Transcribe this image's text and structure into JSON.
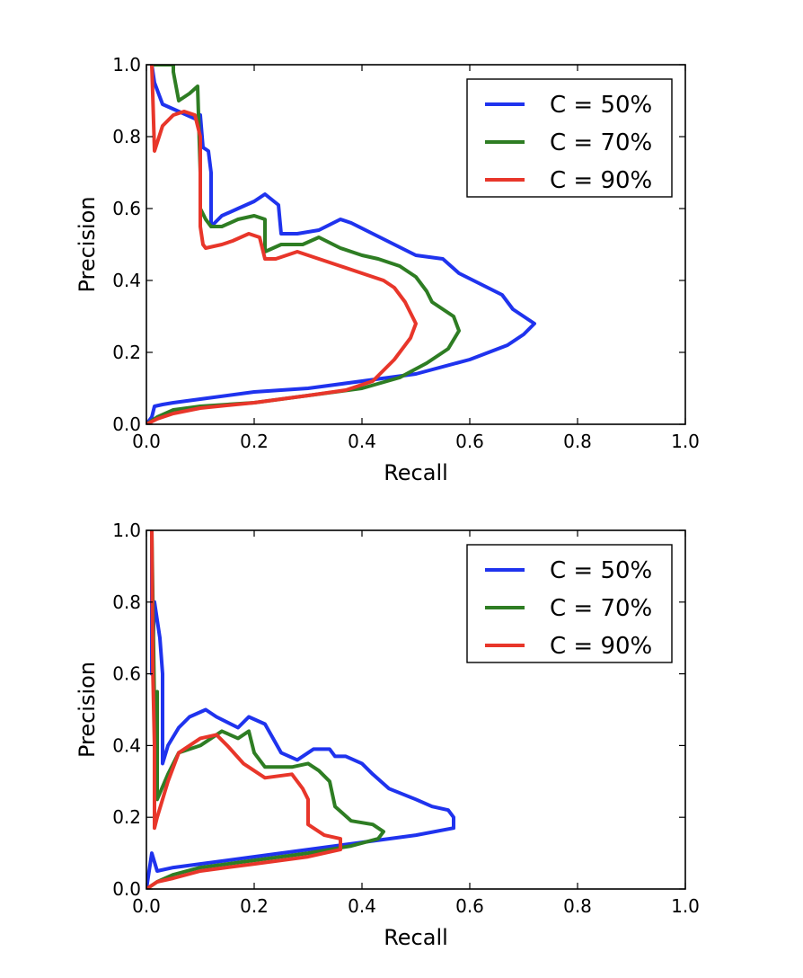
{
  "chart_data": [
    {
      "type": "line",
      "title": "",
      "xlabel": "Recall",
      "ylabel": "Precision",
      "xlim": [
        0,
        1
      ],
      "ylim": [
        0,
        1
      ],
      "xticks": [
        "0.0",
        "0.2",
        "0.4",
        "0.6",
        "0.8",
        "1.0"
      ],
      "yticks": [
        "0.0",
        "0.2",
        "0.4",
        "0.6",
        "0.8",
        "1.0"
      ],
      "grid": false,
      "legend_position": "top-right",
      "series": [
        {
          "name": "C = 50%",
          "color": "#1f33ee",
          "points": [
            [
              0.0,
              0.0
            ],
            [
              0.01,
              0.02
            ],
            [
              0.015,
              0.05
            ],
            [
              0.03,
              0.055
            ],
            [
              0.05,
              0.06
            ],
            [
              0.1,
              0.07
            ],
            [
              0.2,
              0.09
            ],
            [
              0.3,
              0.1
            ],
            [
              0.4,
              0.12
            ],
            [
              0.5,
              0.14
            ],
            [
              0.6,
              0.18
            ],
            [
              0.67,
              0.22
            ],
            [
              0.7,
              0.25
            ],
            [
              0.72,
              0.28
            ],
            [
              0.7,
              0.3
            ],
            [
              0.68,
              0.32
            ],
            [
              0.66,
              0.36
            ],
            [
              0.62,
              0.39
            ],
            [
              0.58,
              0.42
            ],
            [
              0.55,
              0.46
            ],
            [
              0.5,
              0.47
            ],
            [
              0.46,
              0.5
            ],
            [
              0.42,
              0.53
            ],
            [
              0.38,
              0.56
            ],
            [
              0.36,
              0.57
            ],
            [
              0.32,
              0.54
            ],
            [
              0.28,
              0.53
            ],
            [
              0.25,
              0.53
            ],
            [
              0.245,
              0.61
            ],
            [
              0.22,
              0.64
            ],
            [
              0.2,
              0.62
            ],
            [
              0.17,
              0.6
            ],
            [
              0.14,
              0.58
            ],
            [
              0.12,
              0.55
            ],
            [
              0.12,
              0.7
            ],
            [
              0.115,
              0.76
            ],
            [
              0.105,
              0.77
            ],
            [
              0.1,
              0.86
            ],
            [
              0.09,
              0.85
            ],
            [
              0.06,
              0.87
            ],
            [
              0.03,
              0.89
            ],
            [
              0.015,
              0.95
            ],
            [
              0.01,
              1.0
            ]
          ]
        },
        {
          "name": "C = 70%",
          "color": "#2e7d23",
          "points": [
            [
              0.0,
              0.0
            ],
            [
              0.02,
              0.02
            ],
            [
              0.05,
              0.04
            ],
            [
              0.1,
              0.05
            ],
            [
              0.2,
              0.06
            ],
            [
              0.3,
              0.08
            ],
            [
              0.4,
              0.1
            ],
            [
              0.47,
              0.13
            ],
            [
              0.52,
              0.17
            ],
            [
              0.56,
              0.21
            ],
            [
              0.58,
              0.26
            ],
            [
              0.57,
              0.3
            ],
            [
              0.55,
              0.32
            ],
            [
              0.53,
              0.34
            ],
            [
              0.52,
              0.37
            ],
            [
              0.5,
              0.41
            ],
            [
              0.47,
              0.44
            ],
            [
              0.43,
              0.46
            ],
            [
              0.4,
              0.47
            ],
            [
              0.36,
              0.49
            ],
            [
              0.32,
              0.52
            ],
            [
              0.29,
              0.5
            ],
            [
              0.25,
              0.5
            ],
            [
              0.22,
              0.48
            ],
            [
              0.22,
              0.57
            ],
            [
              0.2,
              0.58
            ],
            [
              0.17,
              0.57
            ],
            [
              0.14,
              0.55
            ],
            [
              0.12,
              0.55
            ],
            [
              0.11,
              0.57
            ],
            [
              0.1,
              0.6
            ],
            [
              0.1,
              0.7
            ],
            [
              0.095,
              0.94
            ],
            [
              0.08,
              0.92
            ],
            [
              0.06,
              0.9
            ],
            [
              0.05,
              0.98
            ],
            [
              0.05,
              1.0
            ],
            [
              0.01,
              1.0
            ]
          ]
        },
        {
          "name": "C = 90%",
          "color": "#e8362a",
          "points": [
            [
              0.0,
              0.0
            ],
            [
              0.02,
              0.015
            ],
            [
              0.05,
              0.03
            ],
            [
              0.1,
              0.045
            ],
            [
              0.2,
              0.06
            ],
            [
              0.3,
              0.08
            ],
            [
              0.37,
              0.095
            ],
            [
              0.42,
              0.12
            ],
            [
              0.46,
              0.18
            ],
            [
              0.49,
              0.24
            ],
            [
              0.5,
              0.28
            ],
            [
              0.49,
              0.31
            ],
            [
              0.48,
              0.34
            ],
            [
              0.46,
              0.38
            ],
            [
              0.44,
              0.4
            ],
            [
              0.4,
              0.42
            ],
            [
              0.36,
              0.44
            ],
            [
              0.32,
              0.46
            ],
            [
              0.28,
              0.48
            ],
            [
              0.24,
              0.46
            ],
            [
              0.22,
              0.46
            ],
            [
              0.21,
              0.52
            ],
            [
              0.19,
              0.53
            ],
            [
              0.16,
              0.51
            ],
            [
              0.14,
              0.5
            ],
            [
              0.11,
              0.49
            ],
            [
              0.105,
              0.5
            ],
            [
              0.1,
              0.55
            ],
            [
              0.1,
              0.8
            ],
            [
              0.09,
              0.86
            ],
            [
              0.07,
              0.87
            ],
            [
              0.05,
              0.86
            ],
            [
              0.03,
              0.83
            ],
            [
              0.015,
              0.76
            ],
            [
              0.01,
              1.0
            ]
          ]
        }
      ]
    },
    {
      "type": "line",
      "title": "",
      "xlabel": "Recall",
      "ylabel": "Precision",
      "xlim": [
        0,
        1
      ],
      "ylim": [
        0,
        1
      ],
      "xticks": [
        "0.0",
        "0.2",
        "0.4",
        "0.6",
        "0.8",
        "1.0"
      ],
      "yticks": [
        "0.0",
        "0.2",
        "0.4",
        "0.6",
        "0.8",
        "1.0"
      ],
      "grid": false,
      "legend_position": "top-right",
      "series": [
        {
          "name": "C = 50%",
          "color": "#1f33ee",
          "points": [
            [
              0.0,
              0.0
            ],
            [
              0.005,
              0.05
            ],
            [
              0.01,
              0.1
            ],
            [
              0.02,
              0.05
            ],
            [
              0.05,
              0.06
            ],
            [
              0.1,
              0.07
            ],
            [
              0.2,
              0.09
            ],
            [
              0.3,
              0.11
            ],
            [
              0.4,
              0.13
            ],
            [
              0.5,
              0.15
            ],
            [
              0.57,
              0.17
            ],
            [
              0.57,
              0.2
            ],
            [
              0.56,
              0.22
            ],
            [
              0.53,
              0.23
            ],
            [
              0.5,
              0.25
            ],
            [
              0.45,
              0.28
            ],
            [
              0.42,
              0.32
            ],
            [
              0.4,
              0.35
            ],
            [
              0.37,
              0.37
            ],
            [
              0.35,
              0.37
            ],
            [
              0.34,
              0.39
            ],
            [
              0.31,
              0.39
            ],
            [
              0.28,
              0.36
            ],
            [
              0.25,
              0.38
            ],
            [
              0.22,
              0.46
            ],
            [
              0.19,
              0.48
            ],
            [
              0.17,
              0.45
            ],
            [
              0.13,
              0.48
            ],
            [
              0.11,
              0.5
            ],
            [
              0.08,
              0.48
            ],
            [
              0.06,
              0.45
            ],
            [
              0.04,
              0.4
            ],
            [
              0.03,
              0.35
            ],
            [
              0.03,
              0.6
            ],
            [
              0.025,
              0.7
            ],
            [
              0.02,
              0.75
            ],
            [
              0.015,
              0.8
            ],
            [
              0.01,
              0.6
            ],
            [
              0.01,
              1.0
            ]
          ]
        },
        {
          "name": "C = 70%",
          "color": "#2e7d23",
          "points": [
            [
              0.0,
              0.0
            ],
            [
              0.02,
              0.02
            ],
            [
              0.05,
              0.04
            ],
            [
              0.1,
              0.06
            ],
            [
              0.2,
              0.08
            ],
            [
              0.3,
              0.1
            ],
            [
              0.38,
              0.12
            ],
            [
              0.43,
              0.14
            ],
            [
              0.44,
              0.16
            ],
            [
              0.42,
              0.18
            ],
            [
              0.38,
              0.19
            ],
            [
              0.35,
              0.23
            ],
            [
              0.34,
              0.3
            ],
            [
              0.32,
              0.33
            ],
            [
              0.3,
              0.35
            ],
            [
              0.27,
              0.34
            ],
            [
              0.22,
              0.34
            ],
            [
              0.2,
              0.38
            ],
            [
              0.19,
              0.44
            ],
            [
              0.17,
              0.42
            ],
            [
              0.14,
              0.44
            ],
            [
              0.12,
              0.42
            ],
            [
              0.1,
              0.4
            ],
            [
              0.06,
              0.38
            ],
            [
              0.04,
              0.32
            ],
            [
              0.02,
              0.25
            ],
            [
              0.02,
              0.55
            ],
            [
              0.015,
              0.5
            ],
            [
              0.01,
              1.0
            ]
          ]
        },
        {
          "name": "C = 90%",
          "color": "#e8362a",
          "points": [
            [
              0.0,
              0.0
            ],
            [
              0.02,
              0.02
            ],
            [
              0.05,
              0.03
            ],
            [
              0.1,
              0.05
            ],
            [
              0.2,
              0.07
            ],
            [
              0.3,
              0.09
            ],
            [
              0.36,
              0.11
            ],
            [
              0.36,
              0.14
            ],
            [
              0.33,
              0.15
            ],
            [
              0.3,
              0.18
            ],
            [
              0.3,
              0.25
            ],
            [
              0.29,
              0.28
            ],
            [
              0.27,
              0.32
            ],
            [
              0.22,
              0.31
            ],
            [
              0.18,
              0.35
            ],
            [
              0.15,
              0.4
            ],
            [
              0.13,
              0.43
            ],
            [
              0.1,
              0.42
            ],
            [
              0.06,
              0.38
            ],
            [
              0.04,
              0.3
            ],
            [
              0.02,
              0.2
            ],
            [
              0.015,
              0.17
            ],
            [
              0.015,
              0.4
            ],
            [
              0.012,
              0.6
            ],
            [
              0.01,
              1.0
            ]
          ]
        }
      ]
    }
  ]
}
